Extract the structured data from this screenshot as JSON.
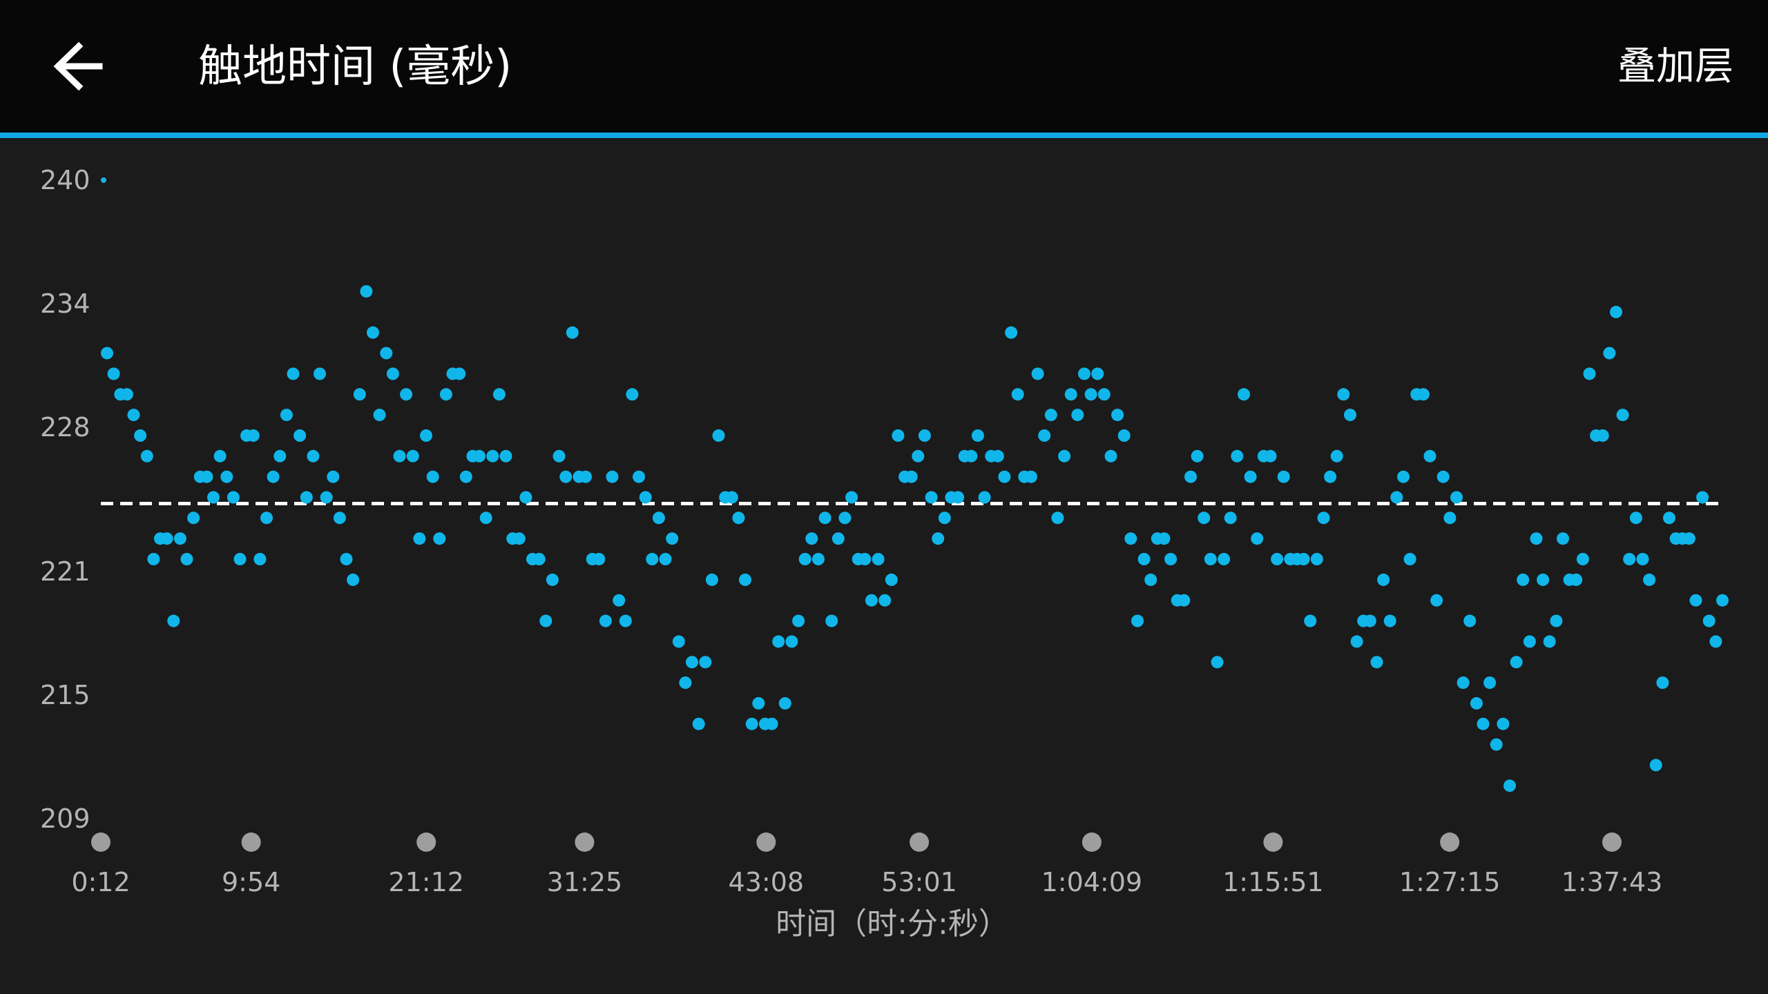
{
  "header": {
    "title": "触地时间 (毫秒)",
    "overlay_label": "叠加层"
  },
  "colors": {
    "accent": "#11a9e5",
    "point": "#10b6ea",
    "background": "#1b1b1b",
    "header": "#070707",
    "tick_text": "#b5b5b5",
    "marker": "#9e9e9e",
    "average_line": "#ffffff"
  },
  "icons": {
    "back": "arrow-left-icon"
  },
  "chart_data": {
    "type": "scatter",
    "xlabel": "时间（时:分:秒）",
    "ylabel": "",
    "x_unit": "seconds",
    "xlim": [
      12,
      6180
    ],
    "ylim": [
      209,
      240
    ],
    "y_ticks": [
      209,
      215,
      221,
      228,
      234,
      240
    ],
    "y_tick_labels": [
      "209",
      "215",
      "221",
      "228",
      "234",
      "240"
    ],
    "x_ticks": [
      12,
      594,
      1272,
      1885,
      2588,
      3181,
      3849,
      4551,
      5235,
      5863
    ],
    "x_tick_labels": [
      "0:12",
      "9:54",
      "21:12",
      "31:25",
      "43:08",
      "53:01",
      "1:04:09",
      "1:15:51",
      "1:27:15",
      "1:37:43"
    ],
    "average_line": 224.2,
    "average_line_style": "dashed",
    "grid": false,
    "legend": "none",
    "series": [
      {
        "values": [
          231.5,
          230.5,
          229.5,
          229.5,
          228.5,
          227.5,
          226.5,
          221.5,
          222.5,
          222.5,
          218.5,
          222.5,
          221.5,
          223.5,
          225.5,
          225.5,
          224.5,
          226.5,
          225.5,
          224.5,
          221.5,
          227.5,
          227.5,
          221.5,
          223.5,
          225.5,
          226.5,
          228.5,
          230.5,
          227.5,
          224.5,
          226.5,
          230.5,
          224.5,
          225.5,
          223.5,
          221.5,
          220.5,
          229.5,
          234.5,
          232.5,
          228.5,
          231.5,
          230.5,
          226.5,
          229.5,
          226.5,
          222.5,
          227.5,
          225.5,
          222.5,
          229.5,
          230.5,
          230.5,
          225.5,
          226.5,
          226.5,
          223.5,
          226.5,
          229.5,
          226.5,
          222.5,
          222.5,
          224.5,
          221.5,
          221.5,
          218.5,
          220.5,
          226.5,
          225.5,
          232.5,
          225.5,
          225.5,
          221.5,
          221.5,
          218.5,
          225.5,
          219.5,
          218.5,
          229.5,
          225.5,
          224.5,
          221.5,
          223.5,
          221.5,
          222.5,
          217.5,
          215.5,
          216.5,
          213.5,
          216.5,
          220.5,
          227.5,
          224.5,
          224.5,
          223.5,
          220.5,
          213.5,
          214.5,
          213.5,
          213.5,
          217.5,
          214.5,
          217.5,
          218.5,
          221.5,
          222.5,
          221.5,
          223.5,
          218.5,
          222.5,
          223.5,
          224.5,
          221.5,
          221.5,
          219.5,
          221.5,
          219.5,
          220.5,
          227.5,
          225.5,
          225.5,
          226.5,
          227.5,
          224.5,
          222.5,
          223.5,
          224.5,
          224.5,
          226.5,
          226.5,
          227.5,
          224.5,
          226.5,
          226.5,
          225.5,
          232.5,
          229.5,
          225.5,
          225.5,
          230.5,
          227.5,
          228.5,
          223.5,
          226.5,
          229.5,
          228.5,
          230.5,
          229.5,
          230.5,
          229.5,
          226.5,
          228.5,
          227.5,
          222.5,
          218.5,
          221.5,
          220.5,
          222.5,
          222.5,
          221.5,
          219.5,
          219.5,
          225.5,
          226.5,
          223.5,
          221.5,
          216.5,
          221.5,
          223.5,
          226.5,
          229.5,
          225.5,
          222.5,
          226.5,
          226.5,
          221.5,
          225.5,
          221.5,
          221.5,
          221.5,
          218.5,
          221.5,
          223.5,
          225.5,
          226.5,
          229.5,
          228.5,
          217.5,
          218.5,
          218.5,
          216.5,
          220.5,
          218.5,
          224.5,
          225.5,
          221.5,
          229.5,
          229.5,
          226.5,
          219.5,
          225.5,
          223.5,
          224.5,
          215.5,
          218.5,
          214.5,
          213.5,
          215.5,
          212.5,
          213.5,
          210.5,
          216.5,
          220.5,
          217.5,
          222.5,
          220.5,
          217.5,
          218.5,
          222.5,
          220.5,
          220.5,
          221.5,
          230.5,
          227.5,
          227.5,
          231.5,
          233.5,
          228.5,
          221.5,
          223.5,
          221.5,
          220.5,
          211.5,
          215.5,
          223.5,
          222.5,
          222.5,
          222.5,
          219.5,
          224.5,
          218.5,
          217.5,
          219.5
        ]
      }
    ]
  }
}
